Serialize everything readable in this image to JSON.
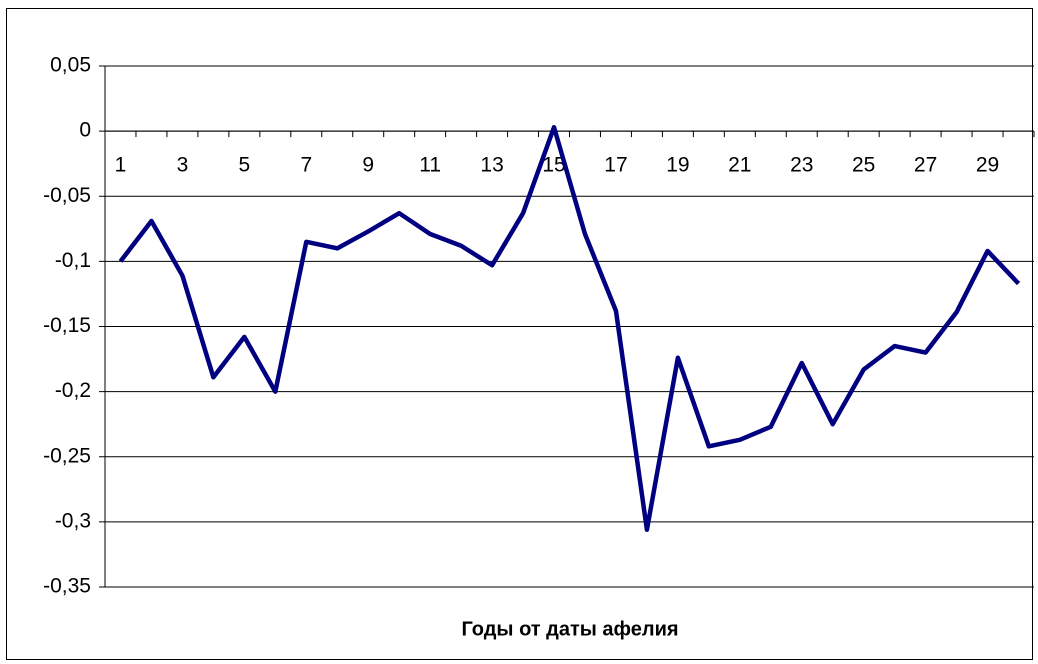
{
  "chart_data": {
    "type": "line",
    "xlabel": "Годы от даты афелия",
    "categories": [
      "1",
      null,
      "3",
      null,
      "5",
      null,
      "7",
      null,
      "9",
      null,
      "11",
      null,
      "13",
      null,
      "15",
      null,
      "17",
      null,
      "19",
      null,
      "21",
      null,
      "23",
      null,
      "25",
      null,
      "27",
      null,
      "29",
      null
    ],
    "series": [
      {
        "name": null,
        "color": "#000080",
        "values": [
          -0.1,
          -0.069,
          -0.111,
          -0.189,
          -0.158,
          -0.2,
          -0.085,
          -0.09,
          -0.077,
          -0.063,
          -0.079,
          -0.088,
          -0.103,
          -0.063,
          0.003,
          -0.079,
          -0.138,
          -0.306,
          -0.174,
          -0.242,
          -0.237,
          -0.227,
          -0.178,
          -0.225,
          -0.183,
          -0.165,
          -0.17,
          -0.139,
          -0.092,
          -0.117
        ]
      }
    ],
    "ylim": [
      -0.35,
      0.05
    ],
    "yticks": [
      {
        "value": -0.35,
        "label": "-0,35"
      },
      {
        "value": -0.3,
        "label": "-0,3"
      },
      {
        "value": -0.25,
        "label": "-0,25"
      },
      {
        "value": -0.2,
        "label": "-0,2"
      },
      {
        "value": -0.15,
        "label": "-0,15"
      },
      {
        "value": -0.1,
        "label": "-0,1"
      },
      {
        "value": -0.05,
        "label": "-0,05"
      },
      0,
      {
        "value": 0.05,
        "label": "0,05"
      }
    ],
    "grid": true
  }
}
